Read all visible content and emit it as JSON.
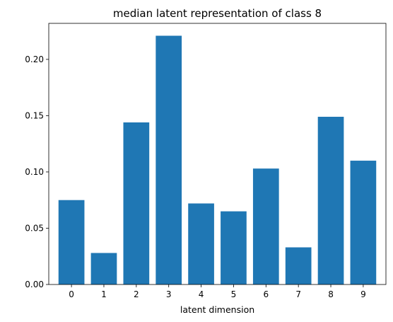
{
  "chart_data": {
    "type": "bar",
    "title": "median latent representation of class 8",
    "xlabel": "latent dimension",
    "ylabel": "",
    "categories": [
      "0",
      "1",
      "2",
      "3",
      "4",
      "5",
      "6",
      "7",
      "8",
      "9"
    ],
    "values": [
      0.075,
      0.028,
      0.144,
      0.221,
      0.072,
      0.065,
      0.103,
      0.033,
      0.149,
      0.11
    ],
    "ylim": [
      0,
      0.232
    ],
    "yticks": [
      "0.00",
      "0.05",
      "0.10",
      "0.15",
      "0.20"
    ],
    "grid": false,
    "bar_color": "#1f77b4"
  }
}
